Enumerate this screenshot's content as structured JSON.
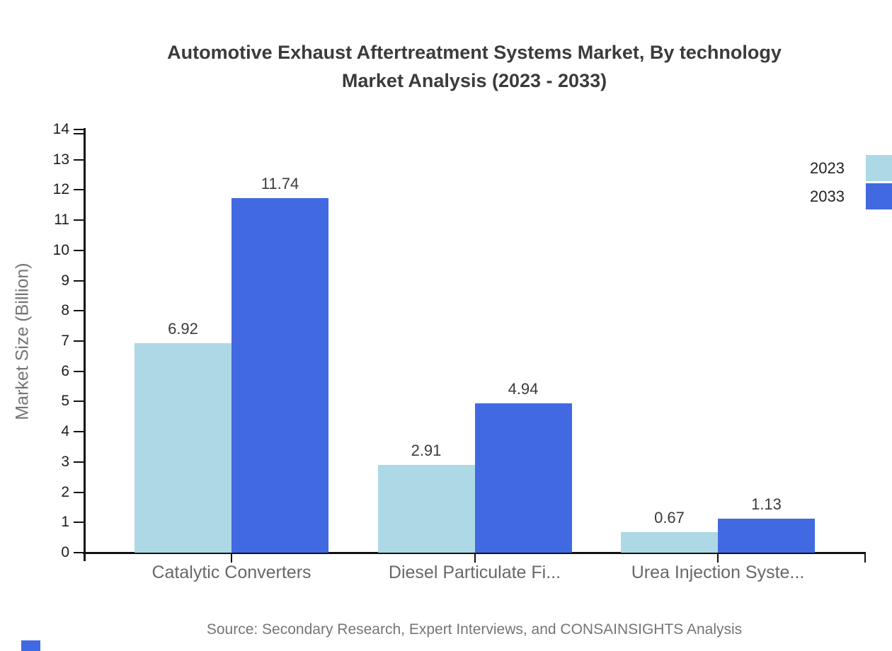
{
  "title": {
    "line1": "Automotive Exhaust Aftertreatment Systems Market, By technology",
    "line2": "Market Analysis (2023 - 2033)"
  },
  "y_axis": {
    "label": "Market Size (Billion)",
    "min": 0,
    "max": 14,
    "tick_step": 1,
    "tick_labels": [
      "0",
      "1",
      "2",
      "3",
      "4",
      "5",
      "6",
      "7",
      "8",
      "9",
      "10",
      "11",
      "12",
      "13",
      "14"
    ]
  },
  "legend": {
    "position": "top-right",
    "items": [
      {
        "label": "2023",
        "color": "#ADD8E6"
      },
      {
        "label": "2033",
        "color": "#4169E1"
      }
    ]
  },
  "source": "Source: Secondary Research, Expert Interviews, and CONSAINSIGHTS Analysis",
  "colors": {
    "series_2023": "#ADD8E6",
    "series_2033": "#4169E1",
    "axis": "#111111",
    "title_text": "#3b3b3b",
    "muted_text": "#757578",
    "watermark": "#4169E1"
  },
  "chart_data": {
    "type": "bar",
    "title": "Automotive Exhaust Aftertreatment Systems Market, By technology Market Analysis (2023 - 2033)",
    "categories": [
      "Catalytic Converters",
      "Diesel Particulate Fi...",
      "Urea Injection Syste..."
    ],
    "series": [
      {
        "name": "2023",
        "color": "#ADD8E6",
        "values": [
          6.92,
          2.91,
          0.67
        ]
      },
      {
        "name": "2033",
        "color": "#4169E1",
        "values": [
          11.74,
          4.94,
          1.13
        ]
      }
    ],
    "value_labels": [
      "6.92",
      "11.74",
      "2.91",
      "4.94",
      "0.67",
      "1.13"
    ],
    "xlabel": "",
    "ylabel": "Market Size (Billion)",
    "ylim": [
      0,
      14
    ],
    "grid": false,
    "legend_position": "top-right"
  }
}
